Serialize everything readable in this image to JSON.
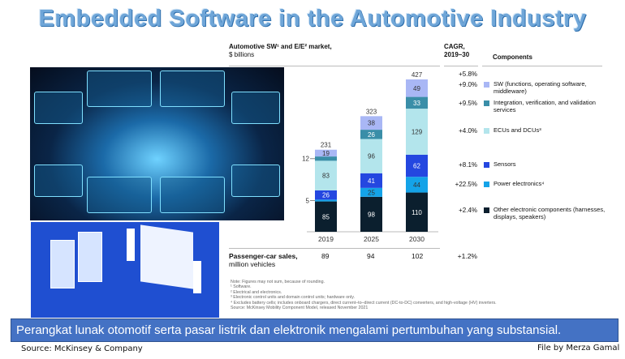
{
  "title": "Embedded Software in the Automotive Industry",
  "chart_data": {
    "type": "bar",
    "stacked": true,
    "title": "Automotive SW¹ and E/E² market,",
    "ylabel": "$ billions",
    "categories": [
      "2019",
      "2025",
      "2030"
    ],
    "totals": [
      231,
      323,
      427
    ],
    "series": [
      {
        "name": "Other electronic components (harnesses, displays, speakers)",
        "values": [
          85,
          98,
          110
        ],
        "color": "#0b1f2e",
        "cagr": "+2.4%"
      },
      {
        "name": "Power electronics⁴",
        "values": [
          5,
          25,
          44
        ],
        "color": "#14a3e8",
        "cagr": "+22.5%"
      },
      {
        "name": "Sensors",
        "values": [
          26,
          41,
          62
        ],
        "color": "#2447e0",
        "cagr": "+8.1%"
      },
      {
        "name": "ECUs and DCUs³",
        "values": [
          83,
          96,
          129
        ],
        "color": "#b3e5ec",
        "cagr": "+4.0%"
      },
      {
        "name": "Integration, verification, and validation services",
        "values": [
          12,
          26,
          33
        ],
        "color": "#3a8ea8",
        "cagr": "+9.5%"
      },
      {
        "name": "SW (functions, operating software, middleware)",
        "values": [
          19,
          38,
          49
        ],
        "color": "#a9b7f5",
        "cagr": "+9.0%"
      }
    ],
    "total_cagr": "+5.8%",
    "cagr_header": "CAGR, 2019–30",
    "legend_header": "Components",
    "ylim": [
      0,
      427
    ]
  },
  "sales": {
    "label": "Passenger-car sales,",
    "unit": "million vehicles",
    "values": [
      "89",
      "94",
      "102"
    ],
    "cagr": "+1.2%"
  },
  "notes": [
    "Note: Figures may not sum, because of rounding.",
    "¹ Software.",
    "² Electrical and electronics.",
    "³ Electronic control units and domain control units; hardware only.",
    "⁴ Excludes battery cells; includes onboard chargers, direct current–to–direct current (DC-to-DC) converters, and high-voltage (HV) inverters.",
    "Source: McKinsey Mobility Component Model, released November 2021"
  ],
  "banner": "Perangkat lunak otomotif serta pasar listrik dan elektronik mengalami pertumbuhan yang substansial.",
  "source": "Source: McKinsey & Company",
  "credit": "File by Merza Gamal"
}
